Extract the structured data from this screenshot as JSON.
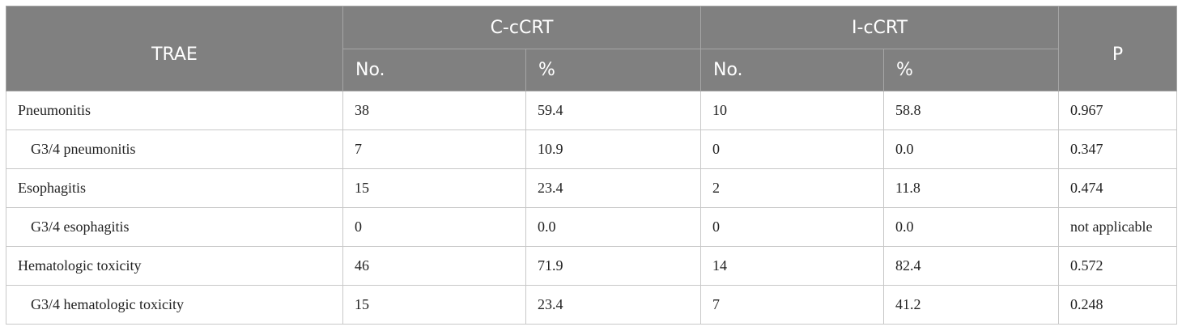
{
  "table": {
    "header": {
      "trae": "TRAE",
      "group1": "C-cCRT",
      "group2": "I-cCRT",
      "p": "P",
      "no": "No.",
      "pct": "%"
    },
    "rows": [
      {
        "label": "Pneumonitis",
        "c_no": "38",
        "c_pct": "59.4",
        "i_no": "10",
        "i_pct": "58.8",
        "p": "0.967",
        "indent": false
      },
      {
        "label": "G3/4 pneumonitis",
        "c_no": "7",
        "c_pct": "10.9",
        "i_no": "0",
        "i_pct": "0.0",
        "p": "0.347",
        "indent": true
      },
      {
        "label": "Esophagitis",
        "c_no": "15",
        "c_pct": "23.4",
        "i_no": "2",
        "i_pct": "11.8",
        "p": "0.474",
        "indent": false
      },
      {
        "label": "G3/4 esophagitis",
        "c_no": "0",
        "c_pct": "0.0",
        "i_no": "0",
        "i_pct": "0.0",
        "p": "not applicable",
        "indent": true
      },
      {
        "label": "Hematologic toxicity",
        "c_no": "46",
        "c_pct": "71.9",
        "i_no": "14",
        "i_pct": "82.4",
        "p": "0.572",
        "indent": false
      },
      {
        "label": "G3/4 hematologic toxicity",
        "c_no": "15",
        "c_pct": "23.4",
        "i_no": "7",
        "i_pct": "41.2",
        "p": "0.248",
        "indent": true
      }
    ]
  }
}
